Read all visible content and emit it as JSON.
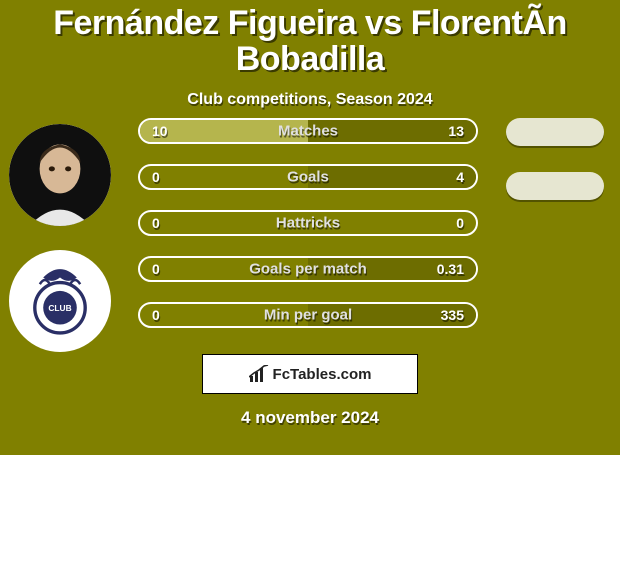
{
  "background_color": "#808000",
  "title": "Fernández Figueira vs FlorentÃ­n Bobadilla",
  "subtitle": "Club competitions, Season 2024",
  "title_fontsize": 34,
  "subtitle_fontsize": 16,
  "text_color": "#ffffff",
  "text_shadow": "rgba(0,0,0,0.55)",
  "player1": {
    "name": "Fernández Figueira",
    "avatar_bg": "#d9d9d9"
  },
  "player2": {
    "name": "FlorentÃ­n Bobadilla",
    "avatar_bg": "#ffffff"
  },
  "bar_border_color": "#ffffff",
  "bar_border_width": 2,
  "bar_radius": 13,
  "track_width": 340,
  "left_fill_color": "#b5b54d",
  "right_fill_color": "#6d6d00",
  "rows": [
    {
      "metric": "Matches",
      "left_value": "10",
      "right_value": "13",
      "left_pct": 100,
      "right_pct": 100
    },
    {
      "metric": "Goals",
      "left_value": "0",
      "right_value": "4",
      "left_pct": 0,
      "right_pct": 100
    },
    {
      "metric": "Hattricks",
      "left_value": "0",
      "right_value": "0",
      "left_pct": 0,
      "right_pct": 0
    },
    {
      "metric": "Goals per match",
      "left_value": "0",
      "right_value": "0.31",
      "left_pct": 0,
      "right_pct": 100
    },
    {
      "metric": "Min per goal",
      "left_value": "0",
      "right_value": "335",
      "left_pct": 0,
      "right_pct": 100
    }
  ],
  "slot_count": 2,
  "slot_bg": "#e6e6d1",
  "logo_text": "FcTables.com",
  "date_text": "4 november 2024"
}
